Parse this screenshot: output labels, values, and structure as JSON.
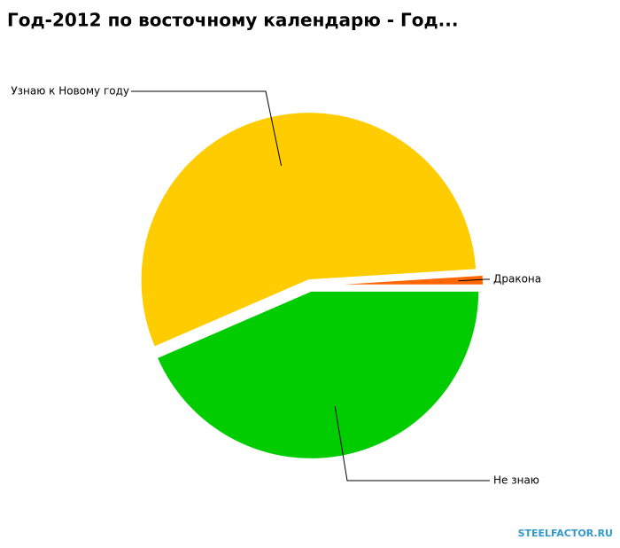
{
  "chart_data": {
    "type": "pie",
    "title": "Год-2012 по восточному календарю - Год...",
    "categories": [
      "Не знаю",
      "Узнаю к Новому году",
      "Дракона"
    ],
    "values": [
      43.5,
      55.5,
      1
    ],
    "colors": [
      "#00cc00",
      "#ffcc00",
      "#ff6600"
    ]
  },
  "watermark": "STEELFACTOR.RU"
}
